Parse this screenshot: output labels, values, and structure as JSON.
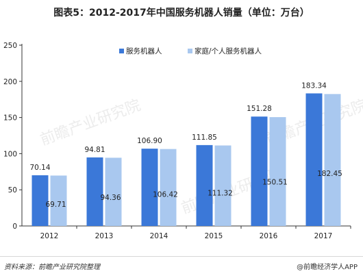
{
  "title": "图表5：2012-2017年中国服务机器人销量（单位：万台）",
  "chart_data": {
    "type": "bar",
    "categories": [
      "2012",
      "2013",
      "2014",
      "2015",
      "2016",
      "2017"
    ],
    "series": [
      {
        "name": "服务机器人",
        "values": [
          70.14,
          94.81,
          106.9,
          111.85,
          151.28,
          183.34
        ],
        "labels": [
          "70.14",
          "94.81",
          "106.90",
          "111.85",
          "151.28",
          "183.34"
        ],
        "color": "#3b78d8"
      },
      {
        "name": "家庭/个人服务机器人",
        "values": [
          69.71,
          94.36,
          106.42,
          111.32,
          150.51,
          182.45
        ],
        "labels": [
          "69.71",
          "94.36",
          "106.42",
          "111.32",
          "150.51",
          "182.45"
        ],
        "color": "#a9c8ef"
      }
    ],
    "ylim": [
      0,
      250
    ],
    "yticks": [
      "0",
      "50",
      "100",
      "150",
      "200",
      "250"
    ],
    "grid": false,
    "legend": "top-center"
  },
  "watermark": "前瞻产业研究院",
  "footer": {
    "source": "资料来源：前瞻产业研究院整理",
    "brand": "@前瞻经济学人APP"
  }
}
